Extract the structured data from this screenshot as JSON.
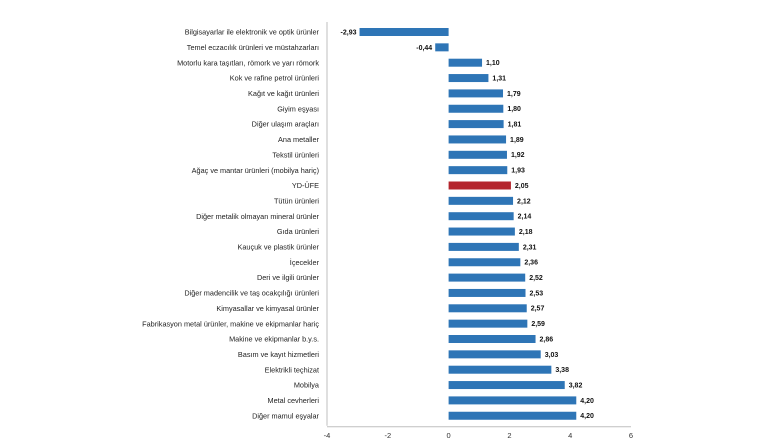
{
  "chart_data": {
    "type": "bar",
    "orientation": "horizontal",
    "categories": [
      "Bilgisayarlar ile elektronik ve optik ürünler",
      "Temel eczacılık ürünleri ve müstahzarları",
      "Motorlu kara taşıtları, römork ve yarı römork",
      "Kok ve rafine petrol ürünleri",
      "Kağıt ve kağıt ürünleri",
      "Giyim eşyası",
      "Diğer ulaşım araçları",
      "Ana metaller",
      "Tekstil ürünleri",
      "Ağaç ve mantar ürünleri (mobilya hariç)",
      "YD-ÜFE",
      "Tütün ürünleri",
      "Diğer metalik olmayan mineral ürünler",
      "Gıda ürünleri",
      "Kauçuk ve plastik ürünler",
      "İçecekler",
      "Deri ve ilgili ürünler",
      "Diğer madencilik ve taş ocakçılığı ürünleri",
      "Kimyasallar ve kimyasal ürünler",
      "Fabrikasyon metal ürünler, makine ve ekipmanlar hariç",
      "Makine ve ekipmanlar b.y.s.",
      "Basım ve kayıt hizmetleri",
      "Elektrikli teçhizat",
      "Mobilya",
      "Metal cevherleri",
      "Diğer mamul eşyalar"
    ],
    "values": [
      -2.93,
      -0.44,
      1.1,
      1.31,
      1.79,
      1.8,
      1.81,
      1.89,
      1.92,
      1.93,
      2.05,
      2.12,
      2.14,
      2.18,
      2.31,
      2.36,
      2.52,
      2.53,
      2.57,
      2.59,
      2.86,
      3.03,
      3.38,
      3.82,
      4.2,
      4.2
    ],
    "value_labels": [
      "-2,93",
      "-0,44",
      "1,10",
      "1,31",
      "1,79",
      "1,80",
      "1,81",
      "1,89",
      "1,92",
      "1,93",
      "2,05",
      "2,12",
      "2,14",
      "2,18",
      "2,31",
      "2,36",
      "2,52",
      "2,53",
      "2,57",
      "2,59",
      "2,86",
      "3,03",
      "3,38",
      "3,82",
      "4,20",
      "4,20"
    ],
    "highlight_category": "YD-ÜFE",
    "xlim": [
      -4,
      6
    ],
    "xticks": [
      -4,
      -2,
      0,
      2,
      4,
      6
    ],
    "xtick_labels": [
      "-4",
      "-2",
      "0",
      "2",
      "4",
      "6"
    ],
    "grid": false,
    "legend": "none",
    "title": "",
    "xlabel": "",
    "ylabel": ""
  },
  "colors": {
    "bar": "#2e75b6",
    "highlight_bar": "#b4252d",
    "axis": "#bfbfbf"
  }
}
